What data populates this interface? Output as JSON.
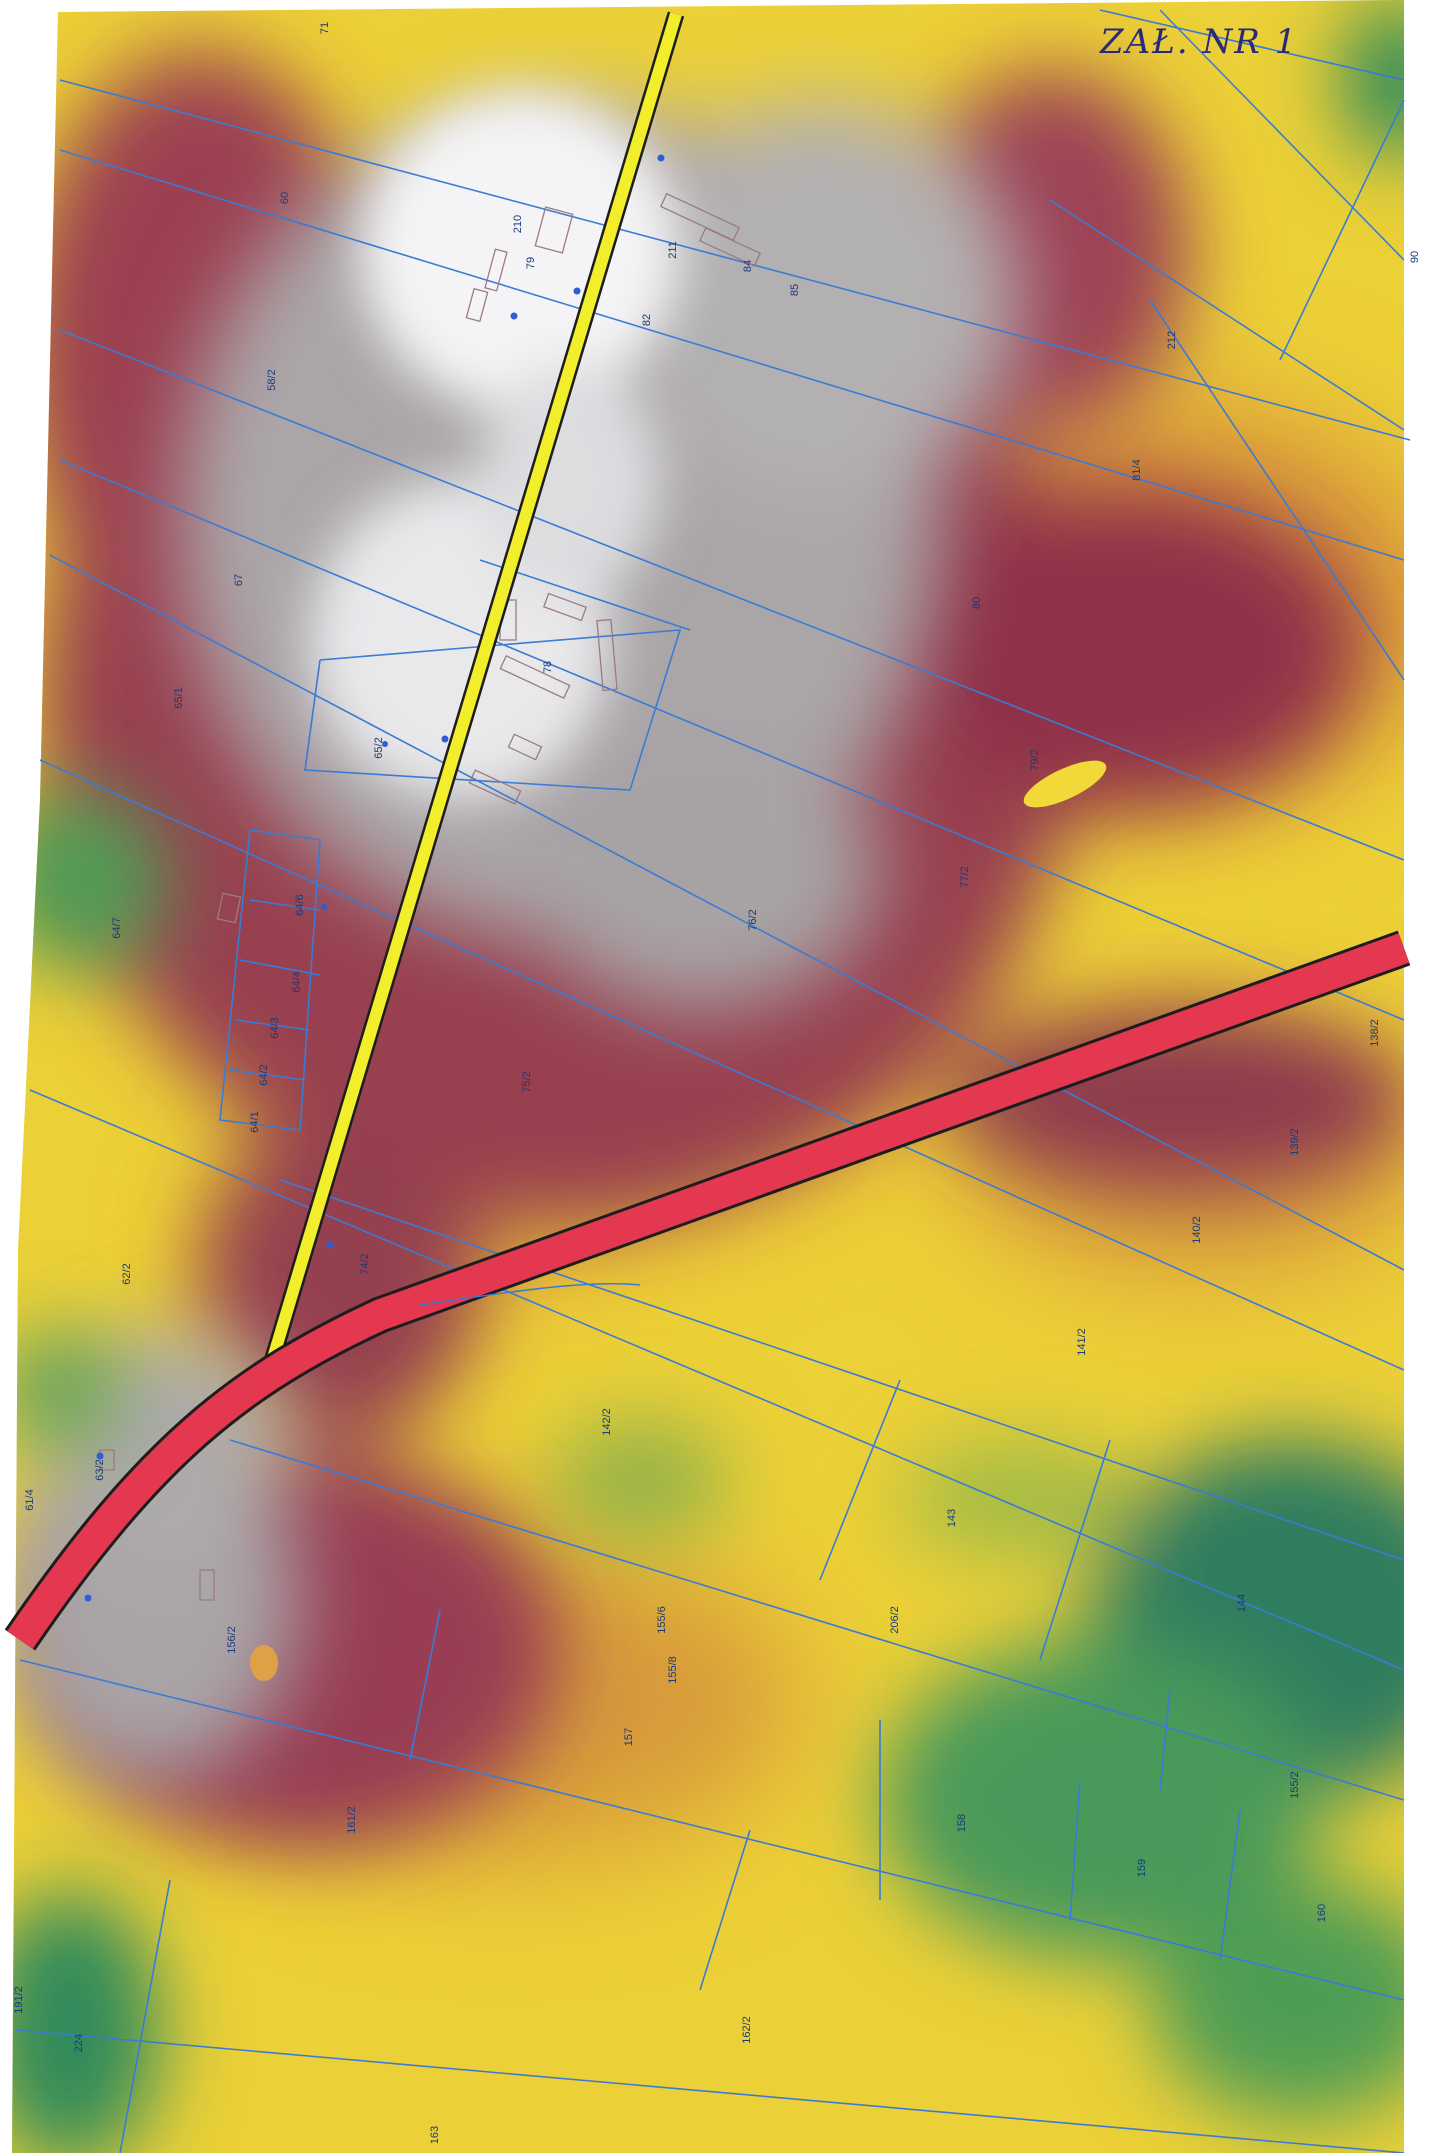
{
  "annotation": "ZAŁ. NR 1",
  "legend_colors": {
    "low": "#2f8a5a",
    "mid_low": "#9bb83f",
    "mid": "#f0d830",
    "mid_high": "#d9a237",
    "high": "#9a3c4e",
    "peak": "#b9b6b8",
    "crest": "#f6f6f8",
    "road_yellow": "#f2ee2c",
    "road_red": "#e3384f",
    "parcel_line": "#3a7bd5"
  },
  "parcels": [
    {
      "id": "60"
    },
    {
      "id": "58/2"
    },
    {
      "id": "67"
    },
    {
      "id": "65/1"
    },
    {
      "id": "65/2"
    },
    {
      "id": "64/7"
    },
    {
      "id": "64/6"
    },
    {
      "id": "64/4"
    },
    {
      "id": "64/3"
    },
    {
      "id": "64/2"
    },
    {
      "id": "64/1"
    },
    {
      "id": "62/2"
    },
    {
      "id": "61/4"
    },
    {
      "id": "63/2"
    },
    {
      "id": "156/2"
    },
    {
      "id": "161/2"
    },
    {
      "id": "191/2"
    },
    {
      "id": "224"
    },
    {
      "id": "163"
    },
    {
      "id": "162/2"
    },
    {
      "id": "157"
    },
    {
      "id": "155/8"
    },
    {
      "id": "155/6"
    },
    {
      "id": "206/2"
    },
    {
      "id": "143"
    },
    {
      "id": "142/2"
    },
    {
      "id": "141/2"
    },
    {
      "id": "144"
    },
    {
      "id": "158"
    },
    {
      "id": "159"
    },
    {
      "id": "160"
    },
    {
      "id": "155/2"
    },
    {
      "id": "140/2"
    },
    {
      "id": "139/2"
    },
    {
      "id": "138/2"
    },
    {
      "id": "75/2"
    },
    {
      "id": "74/2"
    },
    {
      "id": "76/2"
    },
    {
      "id": "77/2"
    },
    {
      "id": "79/2"
    },
    {
      "id": "80"
    },
    {
      "id": "81/4"
    },
    {
      "id": "212"
    },
    {
      "id": "90"
    },
    {
      "id": "78"
    },
    {
      "id": "82"
    },
    {
      "id": "85"
    },
    {
      "id": "84"
    },
    {
      "id": "211"
    },
    {
      "id": "79"
    },
    {
      "id": "210"
    },
    {
      "id": "71"
    }
  ]
}
